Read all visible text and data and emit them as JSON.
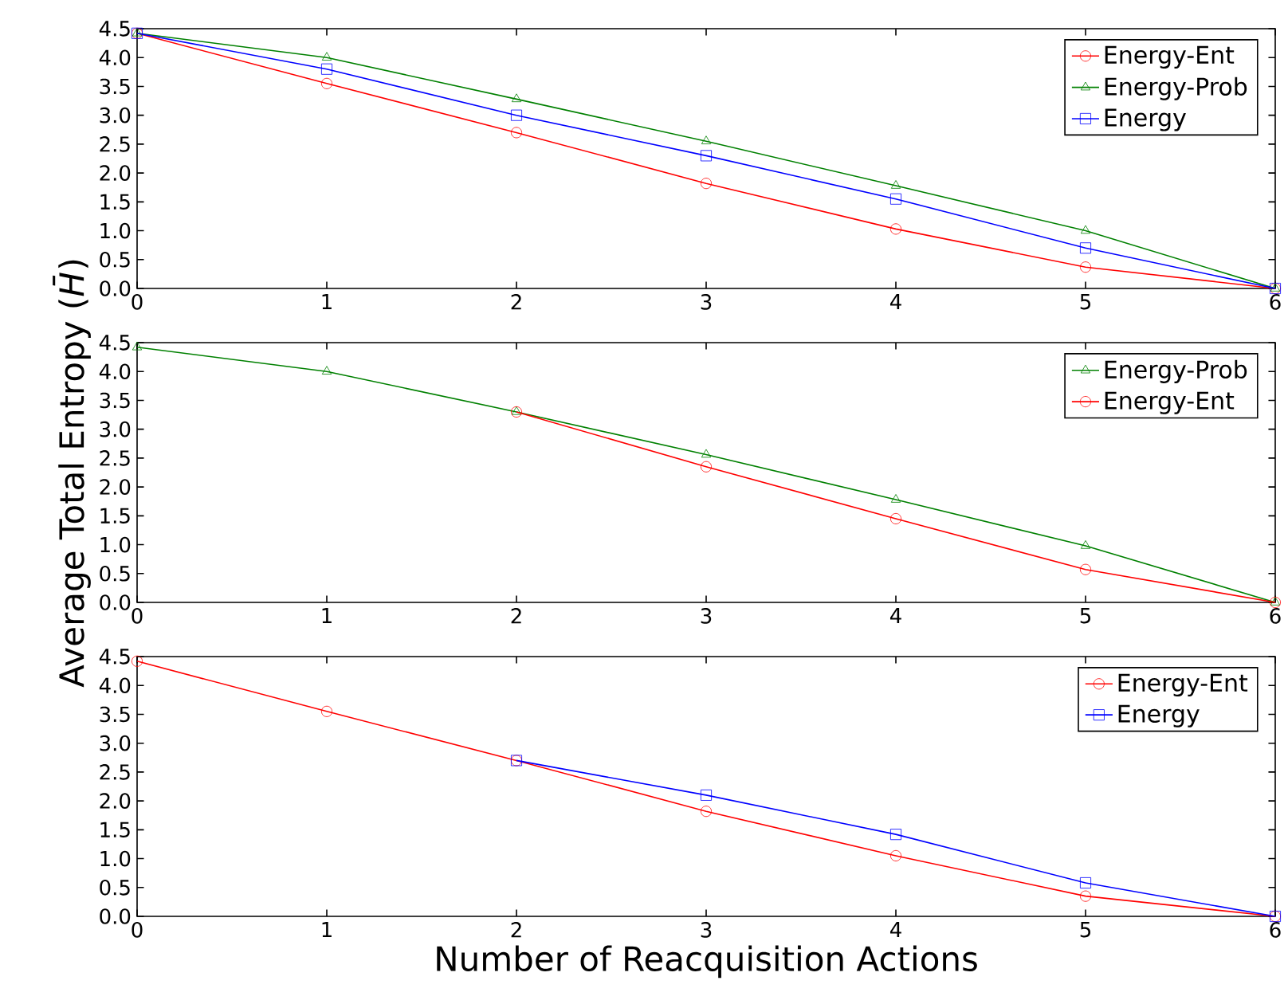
{
  "chart_data": [
    {
      "type": "line",
      "xlim": [
        0,
        6
      ],
      "ylim": [
        0,
        4.5
      ],
      "xticks": [
        0,
        1,
        2,
        3,
        4,
        5,
        6
      ],
      "yticks": [
        {
          "value": 0,
          "label": "0.0"
        },
        {
          "value": 0.5,
          "label": "0.5"
        },
        {
          "value": 1,
          "label": "1.0"
        },
        {
          "value": 1.5,
          "label": "1.5"
        },
        {
          "value": 2,
          "label": "2.0"
        },
        {
          "value": 2.5,
          "label": "2.5"
        },
        {
          "value": 3,
          "label": "3.0"
        },
        {
          "value": 3.5,
          "label": "3.5"
        },
        {
          "value": 4,
          "label": "4.0"
        },
        {
          "value": 4.5,
          "label": "4.5"
        }
      ],
      "legend": "top right",
      "x": [
        0,
        1,
        2,
        3,
        4,
        5,
        6
      ],
      "series": [
        {
          "name": "Energy-Ent",
          "color": "#ff0000",
          "marker": "circle",
          "values": [
            4.42,
            3.55,
            2.7,
            1.82,
            1.03,
            0.37,
            0
          ]
        },
        {
          "name": "Energy-Prob",
          "color": "#008000",
          "marker": "triangle",
          "values": [
            4.42,
            4.0,
            3.28,
            2.55,
            1.78,
            1.0,
            0
          ]
        },
        {
          "name": "Energy",
          "color": "#0000ff",
          "marker": "square",
          "values": [
            4.42,
            3.8,
            3.0,
            2.3,
            1.55,
            0.7,
            0
          ]
        }
      ]
    },
    {
      "type": "line",
      "ylabel": "Average Total Entropy (*H̄*)",
      "xlim": [
        0,
        6
      ],
      "ylim": [
        0,
        4.5
      ],
      "xticks": [
        0,
        1,
        2,
        3,
        4,
        5,
        6
      ],
      "yticks": [
        {
          "value": 0,
          "label": "0.0"
        },
        {
          "value": 0.5,
          "label": "0.5"
        },
        {
          "value": 1,
          "label": "1.0"
        },
        {
          "value": 1.5,
          "label": "1.5"
        },
        {
          "value": 2,
          "label": "2.0"
        },
        {
          "value": 2.5,
          "label": "2.5"
        },
        {
          "value": 3,
          "label": "3.0"
        },
        {
          "value": 3.5,
          "label": "3.5"
        },
        {
          "value": 4,
          "label": "4.0"
        },
        {
          "value": 4.5,
          "label": "4.5"
        }
      ],
      "legend": "top right",
      "x": [
        0,
        1,
        2,
        3,
        4,
        5,
        6
      ],
      "series": [
        {
          "name": "Energy-Prob",
          "color": "#008000",
          "marker": "triangle",
          "values": [
            4.42,
            4.0,
            3.3,
            2.56,
            1.78,
            0.98,
            0
          ]
        },
        {
          "name": "Energy-Ent",
          "color": "#ff0000",
          "marker": "circle",
          "values": [
            null,
            null,
            3.3,
            2.35,
            1.45,
            0.57,
            0
          ]
        }
      ]
    },
    {
      "type": "line",
      "xlabel": "Number of Reacquisition Actions",
      "xlim": [
        0,
        6
      ],
      "ylim": [
        0,
        4.5
      ],
      "xticks": [
        0,
        1,
        2,
        3,
        4,
        5,
        6
      ],
      "yticks": [
        {
          "value": 0,
          "label": "0.0"
        },
        {
          "value": 0.5,
          "label": "0.5"
        },
        {
          "value": 1,
          "label": "1.0"
        },
        {
          "value": 1.5,
          "label": "1.5"
        },
        {
          "value": 2,
          "label": "2.0"
        },
        {
          "value": 2.5,
          "label": "2.5"
        },
        {
          "value": 3,
          "label": "3.0"
        },
        {
          "value": 3.5,
          "label": "3.5"
        },
        {
          "value": 4,
          "label": "4.0"
        },
        {
          "value": 4.5,
          "label": "4.5"
        }
      ],
      "legend": "top right",
      "x": [
        0,
        1,
        2,
        3,
        4,
        5,
        6
      ],
      "series": [
        {
          "name": "Energy-Ent",
          "color": "#ff0000",
          "marker": "circle",
          "values": [
            4.42,
            3.55,
            2.7,
            1.82,
            1.05,
            0.35,
            0
          ]
        },
        {
          "name": "Energy",
          "color": "#0000ff",
          "marker": "square",
          "values": [
            null,
            null,
            2.7,
            2.1,
            1.42,
            0.58,
            0
          ]
        }
      ]
    }
  ]
}
